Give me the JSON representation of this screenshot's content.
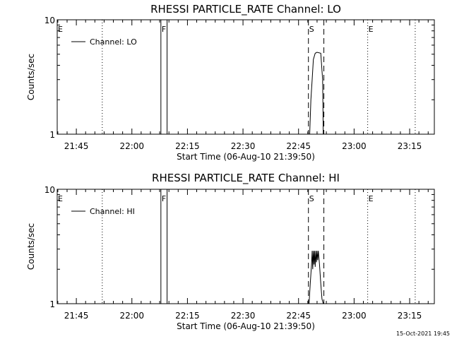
{
  "chart_data": [
    {
      "type": "line",
      "title": "RHESSI PARTICLE_RATE Channel: LO",
      "xlabel": "Start Time (06-Aug-10 21:39:50)",
      "ylabel": "Counts/sec",
      "y_scale": "log",
      "ylim": [
        1,
        10
      ],
      "y_tick_labels": [
        "1",
        "10"
      ],
      "xlim": [
        "21:39:50",
        "23:21:40"
      ],
      "x_tick_labels": [
        "21:45",
        "22:00",
        "22:15",
        "22:30",
        "22:45",
        "23:00",
        "23:15"
      ],
      "legend": {
        "position": "top-left",
        "entries": [
          "Channel: LO"
        ]
      },
      "grid": false,
      "series": [
        {
          "name": "Channel: LO",
          "x": [
            "22:48:00",
            "22:48:20",
            "22:48:40",
            "22:49:00",
            "22:49:30",
            "22:50:00",
            "22:51:00",
            "22:51:30",
            "22:51:40"
          ],
          "y": [
            1.0,
            2.0,
            3.0,
            4.5,
            5.1,
            5.2,
            5.1,
            3.0,
            1.0
          ]
        }
      ],
      "markers": [
        {
          "label": "E",
          "time": "21:39:50",
          "style": "dotted"
        },
        {
          "label": "",
          "time": "21:52:00",
          "style": "dotted"
        },
        {
          "label": "F",
          "time": "22:07:50",
          "style": "solid"
        },
        {
          "label": "",
          "time": "22:09:30",
          "style": "solid"
        },
        {
          "label": "S",
          "time": "22:47:40",
          "style": "dashed"
        },
        {
          "label": "",
          "time": "22:51:50",
          "style": "dashed"
        },
        {
          "label": "E",
          "time": "23:03:40",
          "style": "dotted"
        },
        {
          "label": "",
          "time": "23:16:30",
          "style": "dotted"
        }
      ]
    },
    {
      "type": "line",
      "title": "RHESSI PARTICLE_RATE Channel: HI",
      "xlabel": "Start Time (06-Aug-10 21:39:50)",
      "ylabel": "Counts/sec",
      "y_scale": "log",
      "ylim": [
        1,
        10
      ],
      "y_tick_labels": [
        "1",
        "10"
      ],
      "xlim": [
        "21:39:50",
        "23:21:40"
      ],
      "x_tick_labels": [
        "21:45",
        "22:00",
        "22:15",
        "22:30",
        "22:45",
        "23:00",
        "23:15"
      ],
      "legend": {
        "position": "top-left",
        "entries": [
          "Channel: HI"
        ]
      },
      "grid": false,
      "series": [
        {
          "name": "Channel: HI",
          "x": [
            "22:47:50",
            "22:48:10",
            "22:48:30",
            "22:48:40",
            "22:48:50",
            "22:49:00",
            "22:49:10",
            "22:49:20",
            "22:49:30",
            "22:49:40",
            "22:49:50",
            "22:50:00",
            "22:50:10",
            "22:50:20",
            "22:50:40",
            "22:51:00",
            "22:51:20",
            "22:51:40"
          ],
          "y": [
            1.0,
            1.5,
            2.2,
            2.9,
            2.0,
            2.9,
            2.2,
            2.9,
            2.1,
            2.9,
            2.3,
            2.9,
            2.4,
            2.9,
            2.2,
            1.5,
            1.1,
            1.0
          ]
        }
      ],
      "markers": [
        {
          "label": "E",
          "time": "21:39:50",
          "style": "dotted"
        },
        {
          "label": "",
          "time": "21:52:00",
          "style": "dotted"
        },
        {
          "label": "F",
          "time": "22:07:50",
          "style": "solid"
        },
        {
          "label": "",
          "time": "22:09:30",
          "style": "solid"
        },
        {
          "label": "S",
          "time": "22:47:40",
          "style": "dashed"
        },
        {
          "label": "",
          "time": "22:51:50",
          "style": "dashed"
        },
        {
          "label": "E",
          "time": "23:03:40",
          "style": "dotted"
        },
        {
          "label": "",
          "time": "23:16:30",
          "style": "dotted"
        }
      ]
    }
  ],
  "footer": {
    "timestamp": "15-Oct-2021 19:45"
  }
}
